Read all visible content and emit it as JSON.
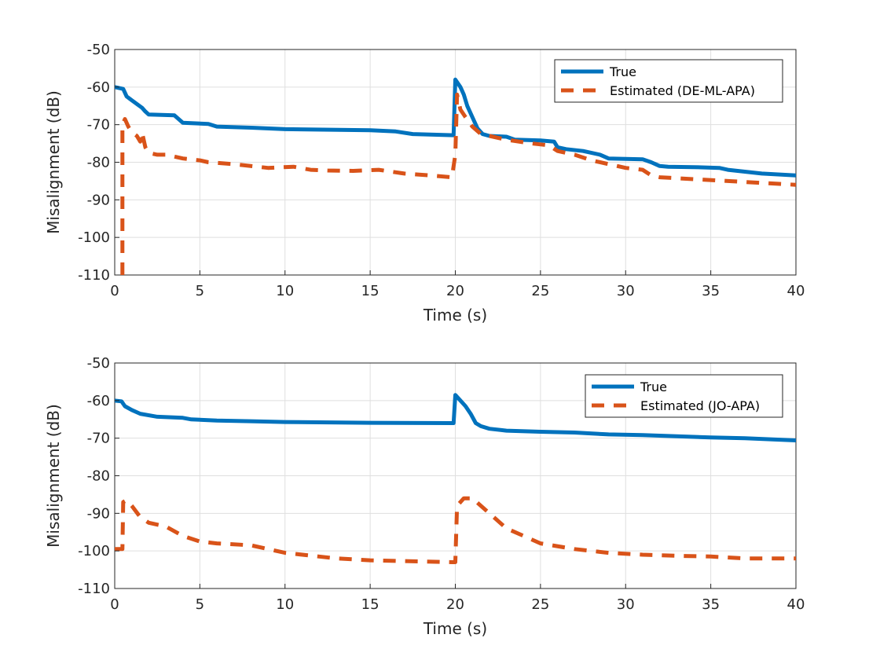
{
  "chart_data": [
    {
      "type": "line",
      "xlabel": "Time (s)",
      "ylabel": "Misalignment (dB)",
      "xlim": [
        0,
        40
      ],
      "ylim": [
        -110,
        -50
      ],
      "xticks": [
        0,
        5,
        10,
        15,
        20,
        25,
        30,
        35,
        40
      ],
      "yticks": [
        -50,
        -60,
        -70,
        -80,
        -90,
        -100,
        -110
      ],
      "grid": true,
      "legend_position": "top-right",
      "series": [
        {
          "name": "True",
          "color": "#0072BD",
          "style": "solid",
          "points": [
            [
              0,
              -60
            ],
            [
              0.5,
              -60.5
            ],
            [
              0.7,
              -62.5
            ],
            [
              1.0,
              -63.5
            ],
            [
              1.3,
              -64.5
            ],
            [
              1.6,
              -65.5
            ],
            [
              1.8,
              -66.5
            ],
            [
              2.0,
              -67.3
            ],
            [
              3.5,
              -67.5
            ],
            [
              4.0,
              -69.5
            ],
            [
              5.5,
              -69.8
            ],
            [
              6.0,
              -70.5
            ],
            [
              8.0,
              -70.8
            ],
            [
              10.0,
              -71.2
            ],
            [
              15.0,
              -71.5
            ],
            [
              16.5,
              -71.8
            ],
            [
              17.5,
              -72.5
            ],
            [
              19.9,
              -72.8
            ],
            [
              20.0,
              -58
            ],
            [
              20.3,
              -60
            ],
            [
              20.5,
              -62
            ],
            [
              20.7,
              -65
            ],
            [
              21.0,
              -68
            ],
            [
              21.3,
              -71
            ],
            [
              21.6,
              -72.5
            ],
            [
              22.0,
              -73
            ],
            [
              23.0,
              -73.2
            ],
            [
              23.5,
              -74
            ],
            [
              25.0,
              -74.2
            ],
            [
              25.8,
              -74.5
            ],
            [
              26.0,
              -76
            ],
            [
              26.5,
              -76.5
            ],
            [
              27.5,
              -77
            ],
            [
              28.5,
              -78
            ],
            [
              29.0,
              -79
            ],
            [
              31.0,
              -79.2
            ],
            [
              31.5,
              -80
            ],
            [
              32.0,
              -81
            ],
            [
              32.5,
              -81.2
            ],
            [
              34.0,
              -81.3
            ],
            [
              35.5,
              -81.5
            ],
            [
              36.0,
              -82
            ],
            [
              37.0,
              -82.5
            ],
            [
              38.0,
              -83
            ],
            [
              40.0,
              -83.5
            ]
          ]
        },
        {
          "name": "Estimated (DE-ML-APA)",
          "color": "#D95319",
          "style": "dashed",
          "points": [
            [
              0.45,
              -110
            ],
            [
              0.45,
              -70
            ],
            [
              0.6,
              -68.5
            ],
            [
              0.8,
              -70.5
            ],
            [
              1.0,
              -72
            ],
            [
              1.3,
              -73
            ],
            [
              1.5,
              -74.5
            ],
            [
              1.6,
              -72
            ],
            [
              1.8,
              -76
            ],
            [
              2.0,
              -77.5
            ],
            [
              2.5,
              -78
            ],
            [
              3.0,
              -78
            ],
            [
              4.0,
              -79
            ],
            [
              5.0,
              -79.5
            ],
            [
              5.5,
              -80
            ],
            [
              7.0,
              -80.5
            ],
            [
              9.0,
              -81.5
            ],
            [
              10.5,
              -81.2
            ],
            [
              11.5,
              -82
            ],
            [
              12.5,
              -82.2
            ],
            [
              14.0,
              -82.3
            ],
            [
              15.5,
              -82
            ],
            [
              17.0,
              -83
            ],
            [
              18.5,
              -83.5
            ],
            [
              19.8,
              -84
            ],
            [
              20.0,
              -78
            ],
            [
              20.1,
              -62
            ],
            [
              20.3,
              -66
            ],
            [
              20.6,
              -68
            ],
            [
              21.0,
              -70.5
            ],
            [
              21.5,
              -72.5
            ],
            [
              22.0,
              -73
            ],
            [
              23.0,
              -74
            ],
            [
              24.5,
              -75
            ],
            [
              25.5,
              -75.5
            ],
            [
              26.0,
              -77
            ],
            [
              27.0,
              -78
            ],
            [
              28.0,
              -79.5
            ],
            [
              29.0,
              -80.5
            ],
            [
              30.0,
              -81.5
            ],
            [
              31.0,
              -82
            ],
            [
              31.5,
              -83.5
            ],
            [
              32.0,
              -84
            ],
            [
              34.0,
              -84.5
            ],
            [
              36.0,
              -85
            ],
            [
              38.0,
              -85.5
            ],
            [
              40.0,
              -86
            ]
          ]
        }
      ]
    },
    {
      "type": "line",
      "xlabel": "Time (s)",
      "ylabel": "Misalignment (dB)",
      "xlim": [
        0,
        40
      ],
      "ylim": [
        -110,
        -50
      ],
      "xticks": [
        0,
        5,
        10,
        15,
        20,
        25,
        30,
        35,
        40
      ],
      "yticks": [
        -50,
        -60,
        -70,
        -80,
        -90,
        -100,
        -110
      ],
      "grid": true,
      "legend_position": "top-right",
      "series": [
        {
          "name": "True",
          "color": "#0072BD",
          "style": "solid",
          "points": [
            [
              0,
              -60
            ],
            [
              0.4,
              -60.2
            ],
            [
              0.6,
              -61.5
            ],
            [
              1.0,
              -62.5
            ],
            [
              1.5,
              -63.5
            ],
            [
              2.5,
              -64.3
            ],
            [
              4.0,
              -64.6
            ],
            [
              4.5,
              -65
            ],
            [
              6.0,
              -65.3
            ],
            [
              8.0,
              -65.5
            ],
            [
              10.0,
              -65.7
            ],
            [
              15.0,
              -65.9
            ],
            [
              19.9,
              -66
            ],
            [
              20.0,
              -58.5
            ],
            [
              20.3,
              -60
            ],
            [
              20.6,
              -61.5
            ],
            [
              20.9,
              -63.5
            ],
            [
              21.2,
              -66
            ],
            [
              21.5,
              -66.8
            ],
            [
              22.0,
              -67.5
            ],
            [
              23.0,
              -68
            ],
            [
              25.0,
              -68.3
            ],
            [
              27.0,
              -68.5
            ],
            [
              29.0,
              -69
            ],
            [
              31.0,
              -69.2
            ],
            [
              33.0,
              -69.5
            ],
            [
              35.0,
              -69.8
            ],
            [
              37.0,
              -70
            ],
            [
              38.5,
              -70.3
            ],
            [
              40.0,
              -70.6
            ]
          ]
        },
        {
          "name": "Estimated (JO-APA)",
          "color": "#D95319",
          "style": "dashed",
          "points": [
            [
              0,
              -99.5
            ],
            [
              0.45,
              -99.5
            ],
            [
              0.5,
              -87
            ],
            [
              0.7,
              -86.5
            ],
            [
              1.0,
              -88
            ],
            [
              1.5,
              -91
            ],
            [
              2.0,
              -92.5
            ],
            [
              3.0,
              -93.5
            ],
            [
              4.0,
              -96
            ],
            [
              5.0,
              -97.5
            ],
            [
              6.0,
              -98
            ],
            [
              8.0,
              -98.5
            ],
            [
              9.0,
              -99.5
            ],
            [
              10.0,
              -100.5
            ],
            [
              12.0,
              -101.5
            ],
            [
              13.0,
              -102
            ],
            [
              15.0,
              -102.5
            ],
            [
              17.0,
              -102.7
            ],
            [
              19.8,
              -103
            ],
            [
              20.0,
              -103
            ],
            [
              20.1,
              -88
            ],
            [
              20.5,
              -86
            ],
            [
              21.0,
              -86
            ],
            [
              22.0,
              -90
            ],
            [
              23.0,
              -94
            ],
            [
              24.0,
              -96
            ],
            [
              25.0,
              -98
            ],
            [
              27.0,
              -99.5
            ],
            [
              29.0,
              -100.5
            ],
            [
              31.0,
              -101
            ],
            [
              33.0,
              -101.3
            ],
            [
              35.0,
              -101.5
            ],
            [
              37.0,
              -102
            ],
            [
              39.0,
              -102
            ],
            [
              40.0,
              -102
            ]
          ]
        }
      ]
    }
  ]
}
